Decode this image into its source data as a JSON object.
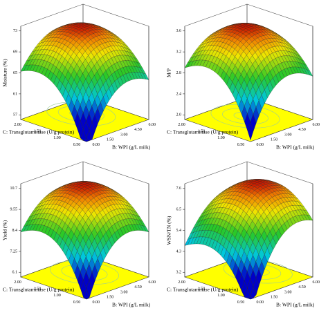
{
  "panels": [
    {
      "z_label": "Moisture (%)",
      "z_ticks": [
        "57",
        "61",
        "65",
        "69",
        "73"
      ],
      "x_label": "C: Transglutaminase (U/g protein)",
      "x_ticks": [
        "0.50",
        "1.00",
        "1.50",
        "2.00"
      ],
      "y_label": "B: WPI (g/L milk)",
      "y_ticks": [
        "0.00",
        "1.50",
        "3.00",
        "4.50",
        "6.00"
      ]
    },
    {
      "z_label": "M/P",
      "z_ticks": [
        "2.0",
        "2.4",
        "2.8",
        "3.2",
        "3.6"
      ],
      "x_label": "C: Transglutaminase (U/g protein)",
      "x_ticks": [
        "0.50",
        "1.00",
        "1.50",
        "2.00"
      ],
      "y_label": "B: WPI (g/L milk)",
      "y_ticks": [
        "0.00",
        "1.50",
        "3.00",
        "4.50",
        "6.00"
      ]
    },
    {
      "z_label": "Yield (%)",
      "z_ticks": [
        "6.1",
        "7.25",
        "8.4",
        "9.55",
        "10.7"
      ],
      "x_label": "C: Transglutaminase (U/g protein)",
      "x_ticks": [
        "0.50",
        "1.00",
        "1.50",
        "2.00"
      ],
      "y_label": "B: WPI (g/L milk)",
      "y_ticks": [
        "0.00",
        "1.50",
        "3.00",
        "4.50",
        "6.00"
      ]
    },
    {
      "z_label": "WSN/TN (%)",
      "z_ticks": [
        "3.2",
        "4.3",
        "5.4",
        "6.5",
        "7.6"
      ],
      "x_label": "C: Transglutaminase (U/g protein)",
      "x_ticks": [
        "0.50",
        "1.00",
        "1.50",
        "2.00"
      ],
      "y_label": "B: WPI (g/L milk)",
      "y_ticks": [
        "0.00",
        "1.50",
        "3.00",
        "4.50",
        "6.00"
      ]
    }
  ]
}
